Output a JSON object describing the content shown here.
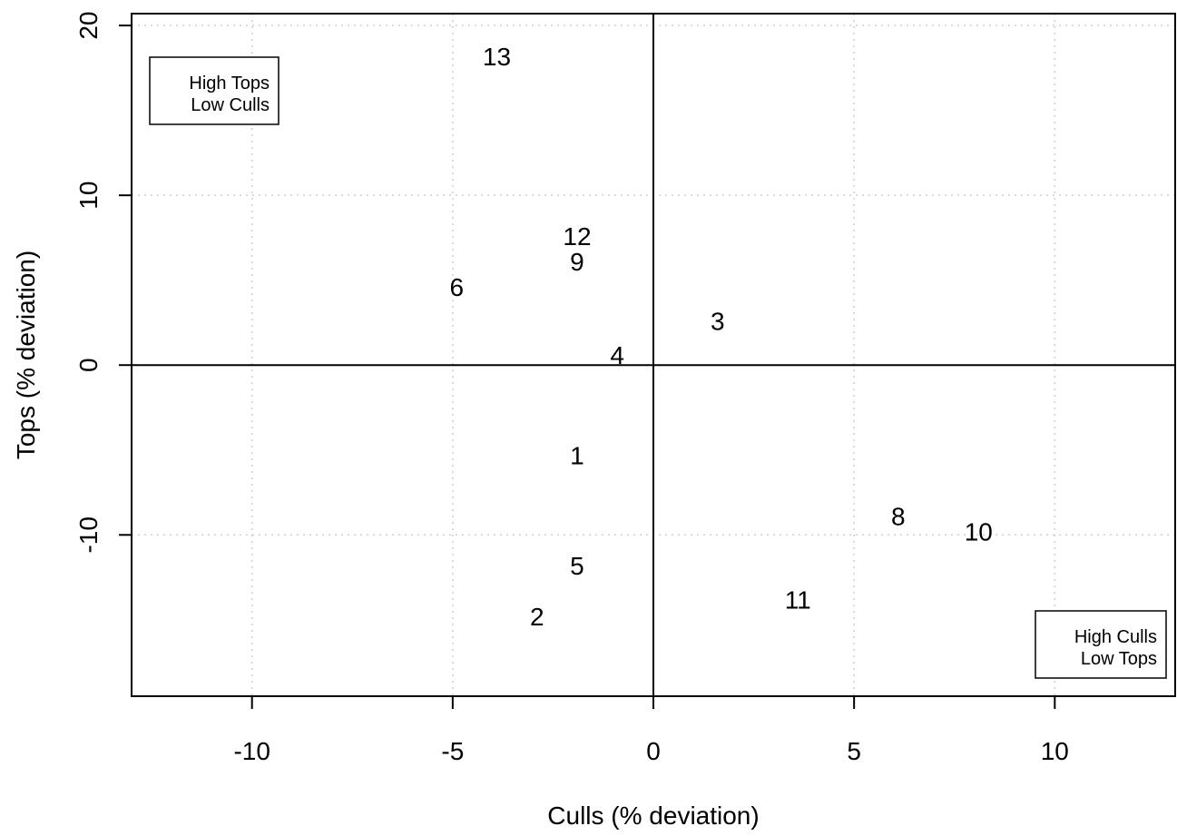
{
  "chart_data": {
    "type": "scatter",
    "xlabel": "Culls (% deviation)",
    "ylabel": "Tops (% deviation)",
    "xlim": [
      -13,
      13
    ],
    "ylim": [
      -19.5,
      20.7
    ],
    "x_ticks": [
      -10,
      -5,
      0,
      5,
      10
    ],
    "x_tick_labels": [
      "-10",
      "-5",
      "0",
      "5",
      "10"
    ],
    "y_ticks": [
      -10,
      0,
      10,
      20
    ],
    "y_tick_labels": [
      "-10",
      "0",
      "10",
      "20"
    ],
    "grid": true,
    "reference_lines": {
      "x": 0,
      "y": 0
    },
    "points": [
      {
        "label": "13",
        "x": -3.9,
        "y": 18.2
      },
      {
        "label": "12",
        "x": -1.9,
        "y": 7.6
      },
      {
        "label": "9",
        "x": -1.9,
        "y": 6.1
      },
      {
        "label": "6",
        "x": -4.9,
        "y": 4.6
      },
      {
        "label": "3",
        "x": 1.6,
        "y": 2.6
      },
      {
        "label": "4",
        "x": -0.9,
        "y": 0.6
      },
      {
        "label": "1",
        "x": -1.9,
        "y": -5.3
      },
      {
        "label": "8",
        "x": 6.1,
        "y": -8.9
      },
      {
        "label": "10",
        "x": 8.1,
        "y": -9.8
      },
      {
        "label": "5",
        "x": -1.9,
        "y": -11.8
      },
      {
        "label": "11",
        "x": 3.6,
        "y": -13.8
      },
      {
        "label": "2",
        "x": -2.9,
        "y": -14.8
      }
    ],
    "annotations": [
      {
        "position": "top-left",
        "lines": [
          "High Tops",
          "Low Culls"
        ]
      },
      {
        "position": "bottom-right",
        "lines": [
          "High Culls",
          "Low Tops"
        ]
      }
    ]
  }
}
